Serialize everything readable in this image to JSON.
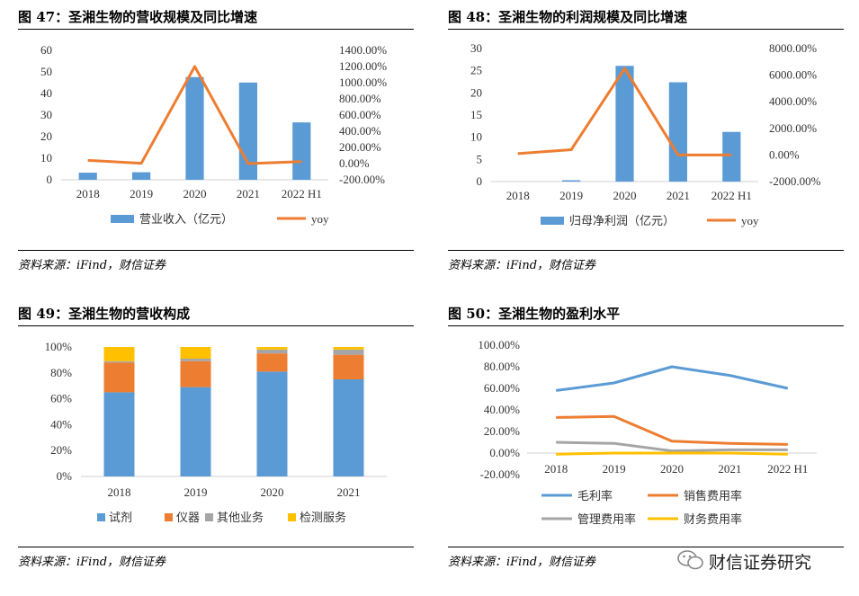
{
  "panels": [
    {
      "title": "图 47：圣湘生物的营收规模及同比增速",
      "source": "资料来源：iFind，财信证券"
    },
    {
      "title": "图 48：圣湘生物的利润规模及同比增速",
      "source": "资料来源：iFind，财信证券"
    },
    {
      "title": "图 49：圣湘生物的营收构成",
      "source": "资料来源：iFind，财信证券"
    },
    {
      "title": "图 50：圣湘生物的盈利水平",
      "source": "资料来源：iFind，财信证券"
    }
  ],
  "watermark": {
    "text": "财信证券研究",
    "icon": "wechat-icon"
  },
  "chart_data": [
    {
      "type": "bar",
      "categories": [
        "2018",
        "2019",
        "2020",
        "2021",
        "2022 H1"
      ],
      "series": [
        {
          "name": "营业收入（亿元）",
          "type": "bar",
          "axis": "left",
          "color": "#5B9BD5",
          "values": [
            3.3,
            3.5,
            47.6,
            45.1,
            26.6
          ]
        },
        {
          "name": "yoy",
          "type": "line",
          "axis": "right",
          "color": "#ED7D31",
          "values": [
            0.4,
            0.04,
            12.0,
            0.0,
            0.25
          ]
        }
      ],
      "ylim": [
        0,
        60
      ],
      "yticks": [
        0,
        10,
        20,
        30,
        40,
        50,
        60
      ],
      "y2lim": [
        -2,
        14
      ],
      "y2ticks": [
        "-200.00%",
        "0.00%",
        "200.00%",
        "400.00%",
        "600.00%",
        "800.00%",
        "1000.00%",
        "1200.00%",
        "1400.00%"
      ],
      "legend": "bottom"
    },
    {
      "type": "bar",
      "categories": [
        "2018",
        "2019",
        "2020",
        "2021",
        "2022 H1"
      ],
      "series": [
        {
          "name": "归母净利润（亿元）",
          "type": "bar",
          "axis": "left",
          "color": "#5B9BD5",
          "values": [
            0.0,
            0.3,
            26.1,
            22.4,
            11.2
          ]
        },
        {
          "name": "yoy",
          "type": "line",
          "axis": "right",
          "color": "#ED7D31",
          "values": [
            1.0,
            4.0,
            65.0,
            0.0,
            0.0
          ]
        }
      ],
      "ylim": [
        0,
        30
      ],
      "yticks": [
        0,
        5,
        10,
        15,
        20,
        25,
        30
      ],
      "y2lim": [
        -20,
        80
      ],
      "y2ticks": [
        "-2000.00%",
        "0.00%",
        "2000.00%",
        "4000.00%",
        "6000.00%",
        "8000.00%"
      ],
      "legend": "bottom"
    },
    {
      "type": "bar",
      "stacked": true,
      "categories": [
        "2018",
        "2019",
        "2020",
        "2021"
      ],
      "series": [
        {
          "name": "试剂",
          "color": "#5B9BD5",
          "values": [
            0.65,
            0.69,
            0.81,
            0.75
          ]
        },
        {
          "name": "仪器",
          "color": "#ED7D31",
          "values": [
            0.23,
            0.2,
            0.14,
            0.19
          ]
        },
        {
          "name": "其他业务",
          "color": "#A5A5A5",
          "values": [
            0.01,
            0.02,
            0.03,
            0.04
          ]
        },
        {
          "name": "检测服务",
          "color": "#FFC000",
          "values": [
            0.11,
            0.09,
            0.02,
            0.02
          ]
        }
      ],
      "ylim": [
        0,
        1
      ],
      "yticks": [
        "0%",
        "20%",
        "40%",
        "60%",
        "80%",
        "100%"
      ],
      "legend": "bottom"
    },
    {
      "type": "line",
      "categories": [
        "2018",
        "2019",
        "2020",
        "2021",
        "2022 H1"
      ],
      "series": [
        {
          "name": "毛利率",
          "color": "#5B9BD5",
          "values": [
            0.58,
            0.65,
            0.8,
            0.72,
            0.6
          ]
        },
        {
          "name": "销售费用率",
          "color": "#ED7D31",
          "values": [
            0.33,
            0.34,
            0.11,
            0.09,
            0.08
          ]
        },
        {
          "name": "管理费用率",
          "color": "#A5A5A5",
          "values": [
            0.1,
            0.09,
            0.02,
            0.03,
            0.03
          ]
        },
        {
          "name": "财务费用率",
          "color": "#FFC000",
          "values": [
            -0.01,
            0.0,
            0.0,
            0.0,
            -0.01
          ]
        }
      ],
      "ylim": [
        -0.2,
        1.0
      ],
      "yticks": [
        "-20.00%",
        "0.00%",
        "20.00%",
        "40.00%",
        "60.00%",
        "80.00%",
        "100.00%"
      ],
      "legend": "bottom"
    }
  ]
}
